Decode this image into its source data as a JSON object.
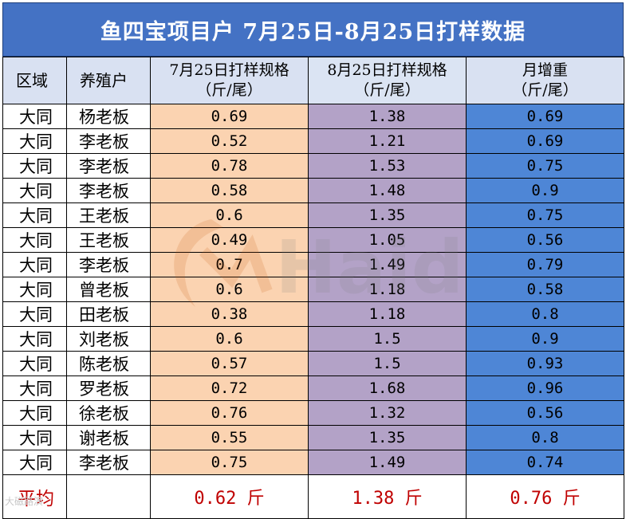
{
  "title": "鱼四宝项目户 7月25日-8月25日打样数据",
  "headers": {
    "region": "区域",
    "farmer": "养殖户",
    "jul_line1": "7月25日打样规格",
    "jul_line2": "（斤/尾）",
    "aug_line1": "8月25日打样规格",
    "aug_line2": "（斤/尾）",
    "gain_line1": "月增重",
    "gain_line2": "（斤/尾）"
  },
  "rows": [
    {
      "region": "大同",
      "farmer": "杨老板",
      "jul": "0.69",
      "aug": "1.38",
      "gain": "0.69"
    },
    {
      "region": "大同",
      "farmer": "李老板",
      "jul": "0.52",
      "aug": "1.21",
      "gain": "0.69"
    },
    {
      "region": "大同",
      "farmer": "李老板",
      "jul": "0.78",
      "aug": "1.53",
      "gain": "0.75"
    },
    {
      "region": "大同",
      "farmer": "李老板",
      "jul": "0.58",
      "aug": "1.48",
      "gain": "0.9"
    },
    {
      "region": "大同",
      "farmer": "王老板",
      "jul": "0.6",
      "aug": "1.35",
      "gain": "0.75"
    },
    {
      "region": "大同",
      "farmer": "王老板",
      "jul": "0.49",
      "aug": "1.05",
      "gain": "0.56"
    },
    {
      "region": "大同",
      "farmer": "李老板",
      "jul": "0.7",
      "aug": "1.49",
      "gain": "0.79"
    },
    {
      "region": "大同",
      "farmer": "曾老板",
      "jul": "0.6",
      "aug": "1.18",
      "gain": "0.58"
    },
    {
      "region": "大同",
      "farmer": "田老板",
      "jul": "0.38",
      "aug": "1.18",
      "gain": "0.8"
    },
    {
      "region": "大同",
      "farmer": "刘老板",
      "jul": "0.6",
      "aug": "1.5",
      "gain": "0.9"
    },
    {
      "region": "大同",
      "farmer": "陈老板",
      "jul": "0.57",
      "aug": "1.5",
      "gain": "0.93"
    },
    {
      "region": "大同",
      "farmer": "罗老板",
      "jul": "0.72",
      "aug": "1.68",
      "gain": "0.96"
    },
    {
      "region": "大同",
      "farmer": "徐老板",
      "jul": "0.76",
      "aug": "1.32",
      "gain": "0.56"
    },
    {
      "region": "大同",
      "farmer": "谢老板",
      "jul": "0.55",
      "aug": "1.35",
      "gain": "0.8"
    },
    {
      "region": "大同",
      "farmer": "李老板",
      "jul": "0.75",
      "aug": "1.49",
      "gain": "0.74"
    }
  ],
  "average": {
    "label": "平均",
    "jul": "0.62 斤",
    "aug": "1.38 斤",
    "gain": "0.76 斤"
  },
  "watermark": {
    "brand_text": "Haid",
    "corner_text": "大磁路演"
  },
  "colors": {
    "title_bg": "#4472c4",
    "header_bg": "#d9e1f2",
    "jul_col": "#fbd3b1",
    "aug_col": "#b3a2c7",
    "gain_col": "#4e86d6",
    "average_text": "#c00000"
  }
}
